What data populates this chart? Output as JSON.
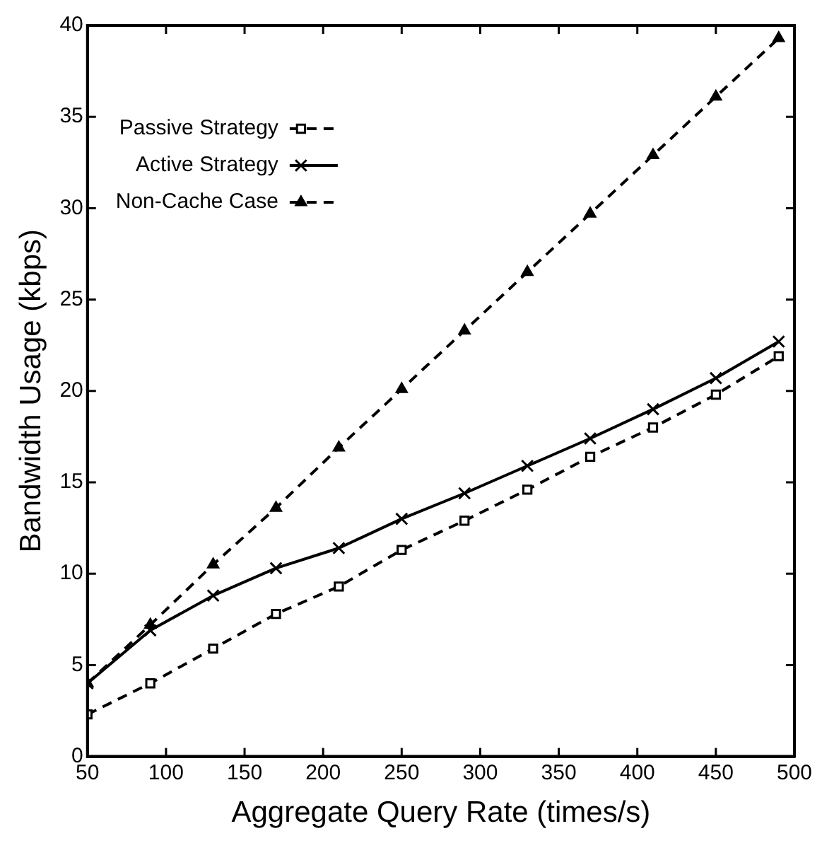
{
  "chart_data": {
    "type": "line",
    "xlabel": "Aggregate Query Rate (times/s)",
    "ylabel": "Bandwidth Usage (kbps)",
    "x": [
      50,
      90,
      130,
      170,
      210,
      250,
      290,
      330,
      370,
      410,
      450,
      490
    ],
    "xlim": [
      50,
      500
    ],
    "xticks": [
      50,
      100,
      150,
      200,
      250,
      300,
      350,
      400,
      450,
      500
    ],
    "ylim": [
      0,
      40
    ],
    "yticks": [
      0,
      5,
      10,
      15,
      20,
      25,
      30,
      35,
      40
    ],
    "grid": false,
    "legend": "top left",
    "series": [
      {
        "name": "Passive Strategy",
        "color": "#000000",
        "marker": "square",
        "line_style": "dashed",
        "values": [
          2.3,
          4.0,
          5.9,
          7.8,
          9.3,
          11.3,
          12.9,
          14.6,
          16.4,
          18.0,
          19.8,
          21.9
        ]
      },
      {
        "name": "Active Strategy",
        "color": "#000000",
        "marker": "cross",
        "line_style": "solid",
        "values": [
          4.0,
          6.9,
          8.8,
          10.3,
          11.4,
          13.0,
          14.4,
          15.9,
          17.4,
          19.0,
          20.7,
          22.7
        ]
      },
      {
        "name": "Non-Cache Case",
        "color": "#000000",
        "marker": "triangle",
        "line_style": "dashed",
        "values": [
          4.0,
          7.2,
          10.5,
          13.6,
          16.9,
          20.1,
          23.3,
          26.5,
          29.7,
          32.9,
          36.1,
          39.3
        ]
      }
    ]
  }
}
